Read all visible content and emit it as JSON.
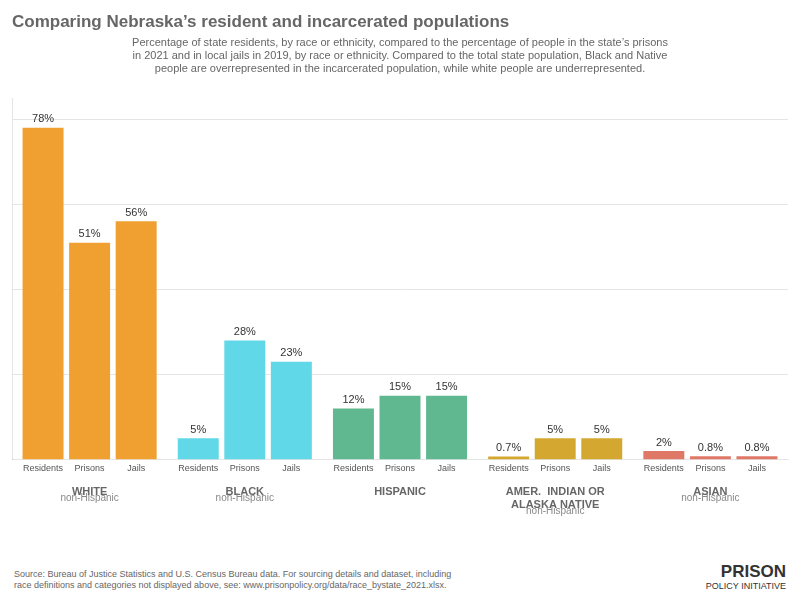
{
  "chart_data": {
    "type": "bar",
    "title": "Comparing Nebraska’s resident and incarcerated populations",
    "subtitle": "Percentage of state residents, by race or ethnicity, compared to the percentage of people in the state’s prisons\nin 2021 and in local jails in 2019, by race or ethnicity. Compared to the total state population, Black and Native\npeople are overrepresented in the incarcerated population, while white people are underrepresented.",
    "categories": [
      "WHITE",
      "BLACK",
      "HISPANIC",
      "AMER.  INDIAN OR\nALASKA NATIVE",
      "ASIAN"
    ],
    "sublabels": [
      "non-Hispanic",
      "non-Hispanic",
      null,
      "non-Hispanic",
      "non-Hispanic"
    ],
    "series": [
      {
        "name": "Residents",
        "values": [
          78,
          5,
          12,
          0.7,
          2
        ],
        "value_labels": [
          "78%",
          "5%",
          "12%",
          "0.7%",
          "2%"
        ]
      },
      {
        "name": "Prisons",
        "values": [
          51,
          28,
          15,
          5,
          0.8
        ],
        "value_labels": [
          "51%",
          "28%",
          "15%",
          "5%",
          "0.8%"
        ]
      },
      {
        "name": "Jails",
        "values": [
          56,
          23,
          15,
          5,
          0.8
        ],
        "value_labels": [
          "56%",
          "23%",
          "15%",
          "5%",
          "0.8%"
        ]
      }
    ],
    "colors": [
      "#f0a030",
      "#60d8e8",
      "#60b890",
      "#d4a830",
      "#e07868"
    ],
    "ylim": [
      0,
      85
    ],
    "yticks": [
      20,
      40,
      60,
      80
    ],
    "grid": true,
    "tick_labels": "x",
    "data_labels": true,
    "annotations": [
      "Source: Bureau of Justice Statistics and U.S. Census Bureau data. For sourcing details and dataset, including\nrace definitions and categories not displayed above, see: www.prisonpolicy.org/data/race_bystate_2021.xlsx.",
      "PRISON",
      "POLICY INITIATIVE"
    ]
  }
}
